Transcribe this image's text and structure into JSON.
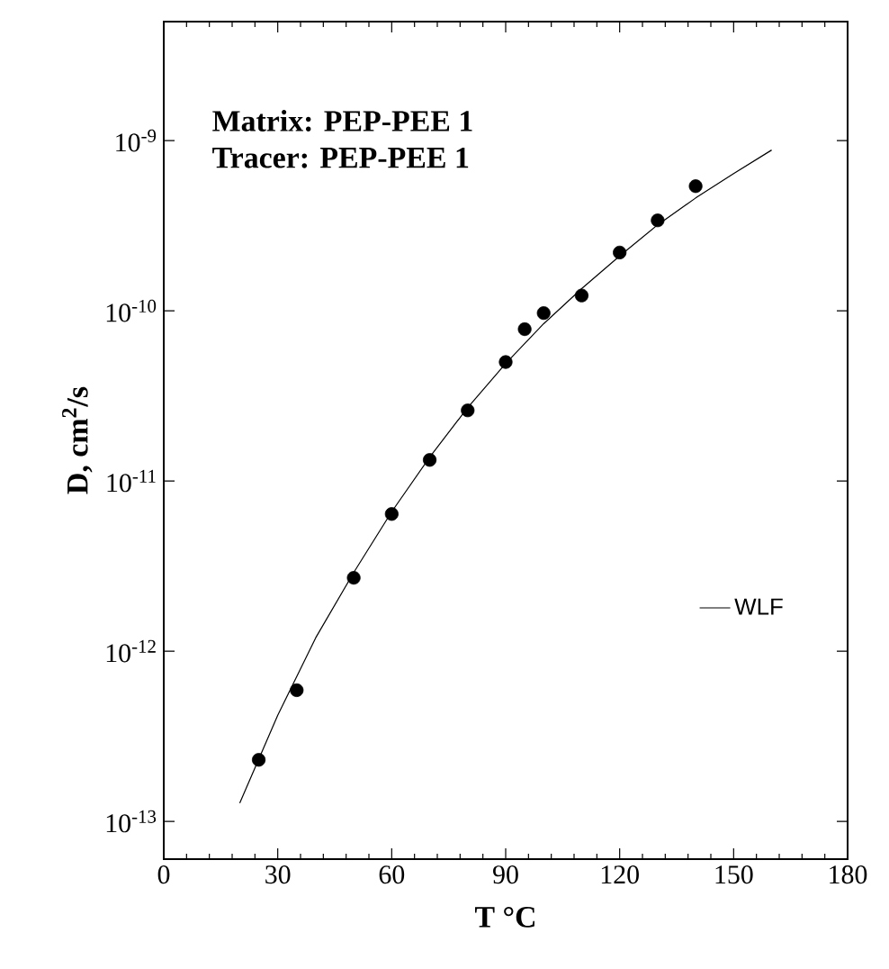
{
  "chart_data": {
    "type": "scatter",
    "xlabel": "T °C",
    "ylabel": "D, cm$^{2}$/s",
    "log": "y",
    "legend": "bottom right",
    "grid": false,
    "annotations": [
      "**Matrix:  PEP-PEE  1**",
      "**Tracer:  PEP-PEE  1**"
    ],
    "xlim": [
      0,
      180
    ],
    "xticks": [
      0,
      30,
      60,
      90,
      120,
      150,
      180
    ],
    "ylim": [
      6e-14,
      5e-09
    ],
    "yticks": [
      {
        "value": 1e-13,
        "label": "10$^{-13}$"
      },
      {
        "value": 1e-12,
        "label": "10$^{-12}$"
      },
      {
        "value": 1e-11,
        "label": "10$^{-11}$"
      },
      {
        "value": 1e-10,
        "label": "10$^{-10}$"
      },
      {
        "value": 1e-09,
        "label": "10$^{-9}$"
      }
    ],
    "series": [
      {
        "color": "#000000",
        "marker": "circle",
        "x": [
          25,
          35,
          50,
          60,
          70,
          80,
          90,
          95,
          100,
          110,
          120,
          130,
          140
        ],
        "values": [
          2.3e-13,
          5.9e-13,
          2.7e-12,
          6.4e-12,
          1.33e-11,
          2.6e-11,
          5e-11,
          7.8e-11,
          9.7e-11,
          1.23e-10,
          2.2e-10,
          3.4e-10,
          5.4e-10
        ]
      },
      {
        "type": "line",
        "name": "WLF",
        "color": "#000000",
        "marker": "none",
        "line_style": "solid",
        "x": [
          20,
          30,
          40,
          50,
          60,
          70,
          80,
          90,
          100,
          110,
          120,
          130,
          140,
          150,
          160
        ],
        "values": [
          1.28e-13,
          4.2e-13,
          1.2e-12,
          2.9e-12,
          6.6e-12,
          1.38e-11,
          2.7e-11,
          4.9e-11,
          8.4e-11,
          1.35e-10,
          2.1e-10,
          3.2e-10,
          4.6e-10,
          6.4e-10,
          8.8e-10
        ]
      }
    ]
  }
}
